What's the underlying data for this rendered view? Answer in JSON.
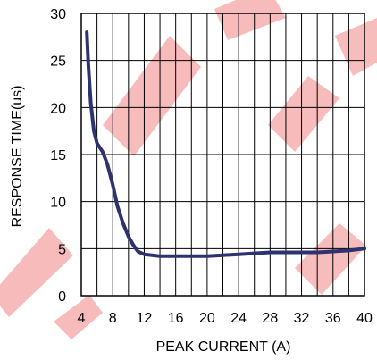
{
  "chart_data": {
    "type": "line",
    "title": "",
    "xlabel": "PEAK CURRENT (A)",
    "ylabel": "RESPONSE TIME(us)",
    "xlim": [
      4,
      40
    ],
    "ylim": [
      0,
      30
    ],
    "x_ticks": [
      4,
      8,
      12,
      16,
      20,
      24,
      28,
      32,
      36,
      40
    ],
    "x_tick_labels": [
      "4",
      "8",
      "12",
      "16",
      "20",
      "24",
      "28",
      "32",
      "36",
      "40"
    ],
    "y_ticks": [
      0,
      5,
      10,
      15,
      20,
      25,
      30
    ],
    "y_tick_labels": [
      "0",
      "5",
      "10",
      "15",
      "20",
      "25",
      "30"
    ],
    "x_grid_step": 2,
    "y_grid_step": 5,
    "grid": true,
    "series": [
      {
        "x": [
          4.7,
          4.9,
          5.2,
          5.6,
          6.0,
          6.7,
          7.3,
          8.0,
          8.6,
          9.3,
          10.0,
          10.6,
          11.2,
          12.0,
          13.0,
          14.0,
          16.0,
          18.0,
          20.0,
          22.0,
          24.0,
          26.0,
          28.0,
          30.0,
          32.0,
          34.0,
          36.0,
          38.0,
          40.0
        ],
        "y": [
          28.0,
          24.5,
          20.5,
          17.5,
          16.2,
          15.3,
          14.0,
          11.8,
          9.5,
          7.7,
          6.3,
          5.4,
          4.7,
          4.4,
          4.3,
          4.2,
          4.2,
          4.2,
          4.2,
          4.3,
          4.4,
          4.5,
          4.6,
          4.6,
          4.6,
          4.6,
          4.7,
          4.8,
          5.0
        ]
      }
    ],
    "colors": {
      "line": "#2e3270",
      "grid": "#000000",
      "text": "#000000"
    }
  }
}
